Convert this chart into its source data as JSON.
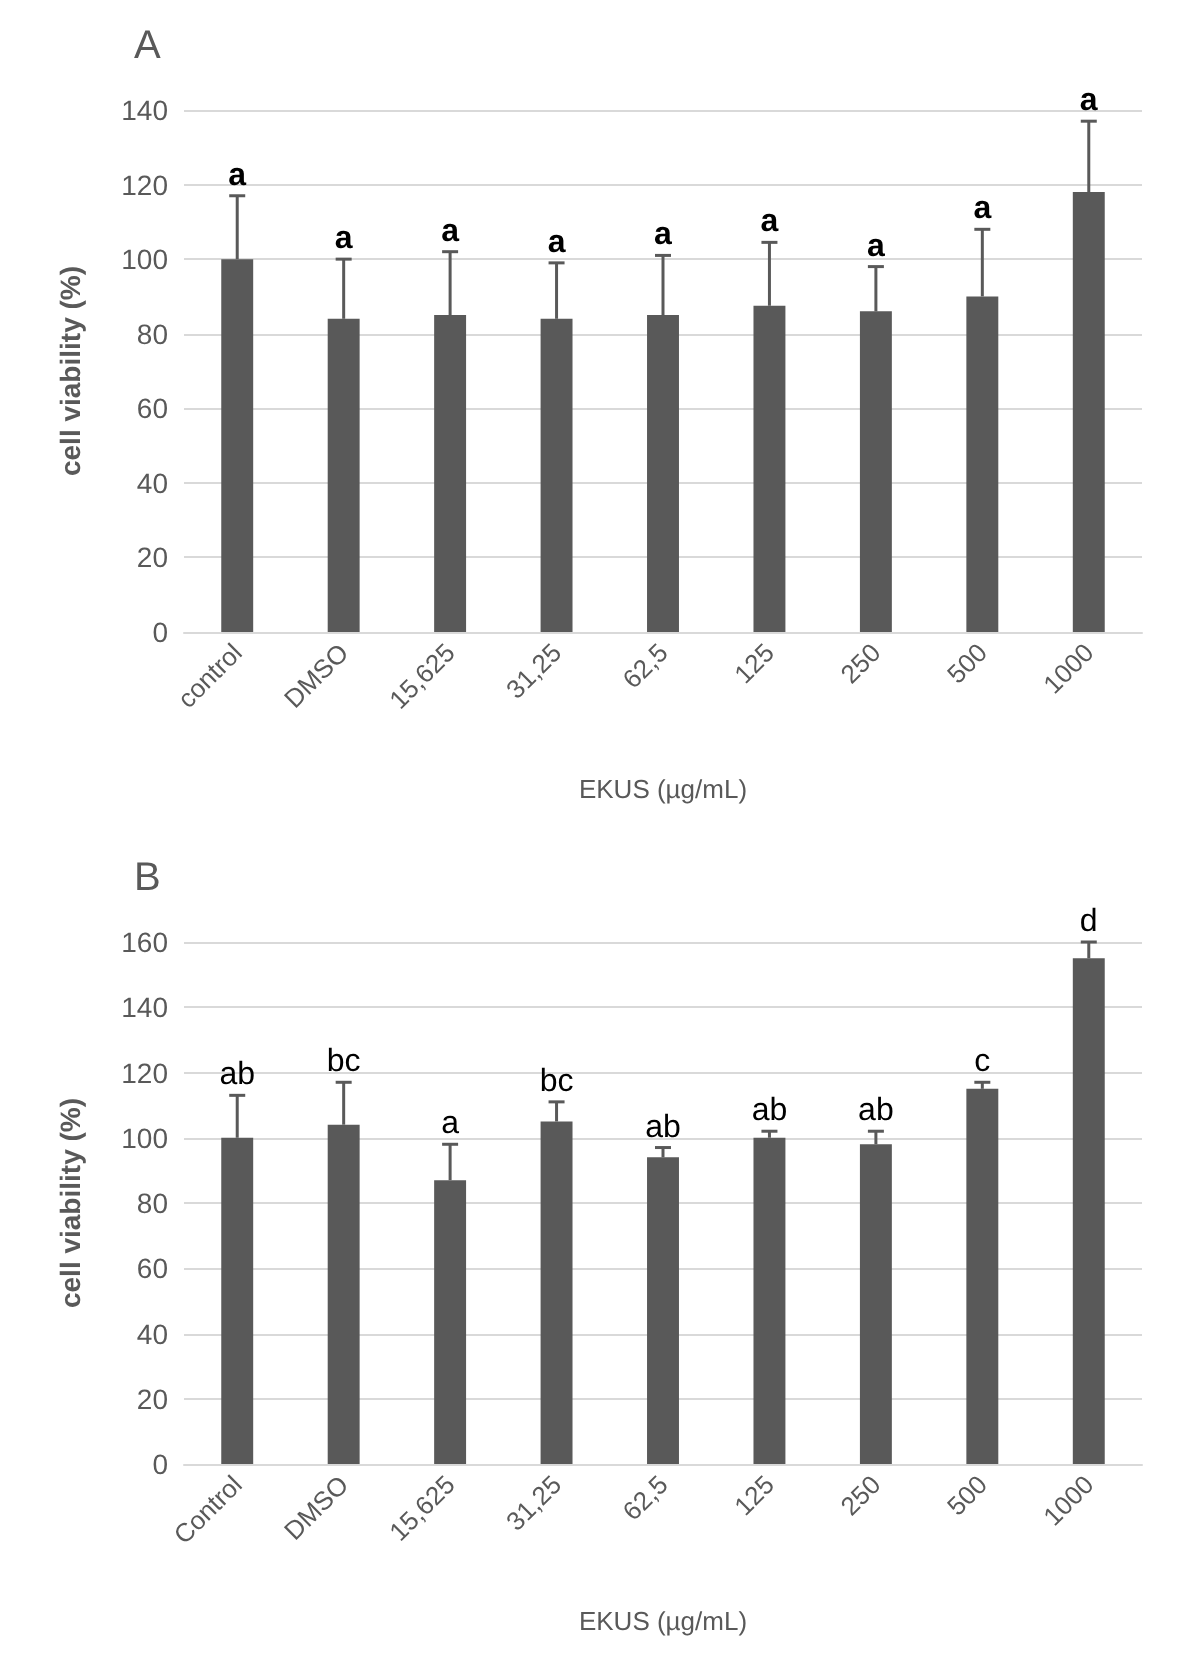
{
  "chart_data": [
    {
      "type": "bar",
      "title": "A",
      "xlabel": "EKUS (µg/mL)",
      "ylabel": "cell viability (%)",
      "categories": [
        "control",
        "DMSO",
        "15,625",
        "31,25",
        "62,5",
        "125",
        "250",
        "500",
        "1000"
      ],
      "values": [
        100,
        84,
        85,
        84,
        85,
        87.5,
        86,
        90,
        118
      ],
      "color": "#595959",
      "errors": [
        17,
        16,
        17,
        15,
        16,
        17,
        12,
        18,
        19
      ],
      "ylim": [
        0,
        140
      ],
      "yticks": [
        0,
        20,
        40,
        60,
        80,
        100,
        120,
        140
      ],
      "grid": "y",
      "annotations": [
        {
          "text": "a",
          "x": "control",
          "y": 117
        },
        {
          "text": "a",
          "x": "DMSO",
          "y": 100
        },
        {
          "text": "a",
          "x": "15,625",
          "y": 102
        },
        {
          "text": "a",
          "x": "31,25",
          "y": 99
        },
        {
          "text": "a",
          "x": "62,5",
          "y": 101
        },
        {
          "text": "a",
          "x": "125",
          "y": 104.5
        },
        {
          "text": "a",
          "x": "250",
          "y": 98
        },
        {
          "text": "a",
          "x": "500",
          "y": 108
        },
        {
          "text": "a",
          "x": "1000",
          "y": 137
        }
      ]
    },
    {
      "type": "bar",
      "title": "B",
      "xlabel": "EKUS (µg/mL)",
      "ylabel": "cell viability (%)",
      "categories": [
        "Control",
        "DMSO",
        "15,625",
        "31,25",
        "62,5",
        "125",
        "250",
        "500",
        "1000"
      ],
      "values": [
        100,
        104,
        87,
        105,
        94,
        100,
        98,
        115,
        155
      ],
      "color": "#595959",
      "errors": [
        13,
        13,
        11,
        6,
        3,
        2,
        4,
        2,
        5
      ],
      "ylim": [
        0,
        160
      ],
      "yticks": [
        0,
        20,
        40,
        60,
        80,
        100,
        120,
        140,
        160
      ],
      "grid": "y",
      "annotations": [
        {
          "text": "ab",
          "x": "Control",
          "y": 113
        },
        {
          "text": "bc",
          "x": "DMSO",
          "y": 117
        },
        {
          "text": "a",
          "x": "15,625",
          "y": 98
        },
        {
          "text": "bc",
          "x": "31,25",
          "y": 111
        },
        {
          "text": "ab",
          "x": "62,5",
          "y": 97
        },
        {
          "text": "ab",
          "x": "125",
          "y": 102
        },
        {
          "text": "ab",
          "x": "250",
          "y": 102
        },
        {
          "text": "c",
          "x": "500",
          "y": 117
        },
        {
          "text": "d",
          "x": "1000",
          "y": 160
        }
      ]
    }
  ]
}
